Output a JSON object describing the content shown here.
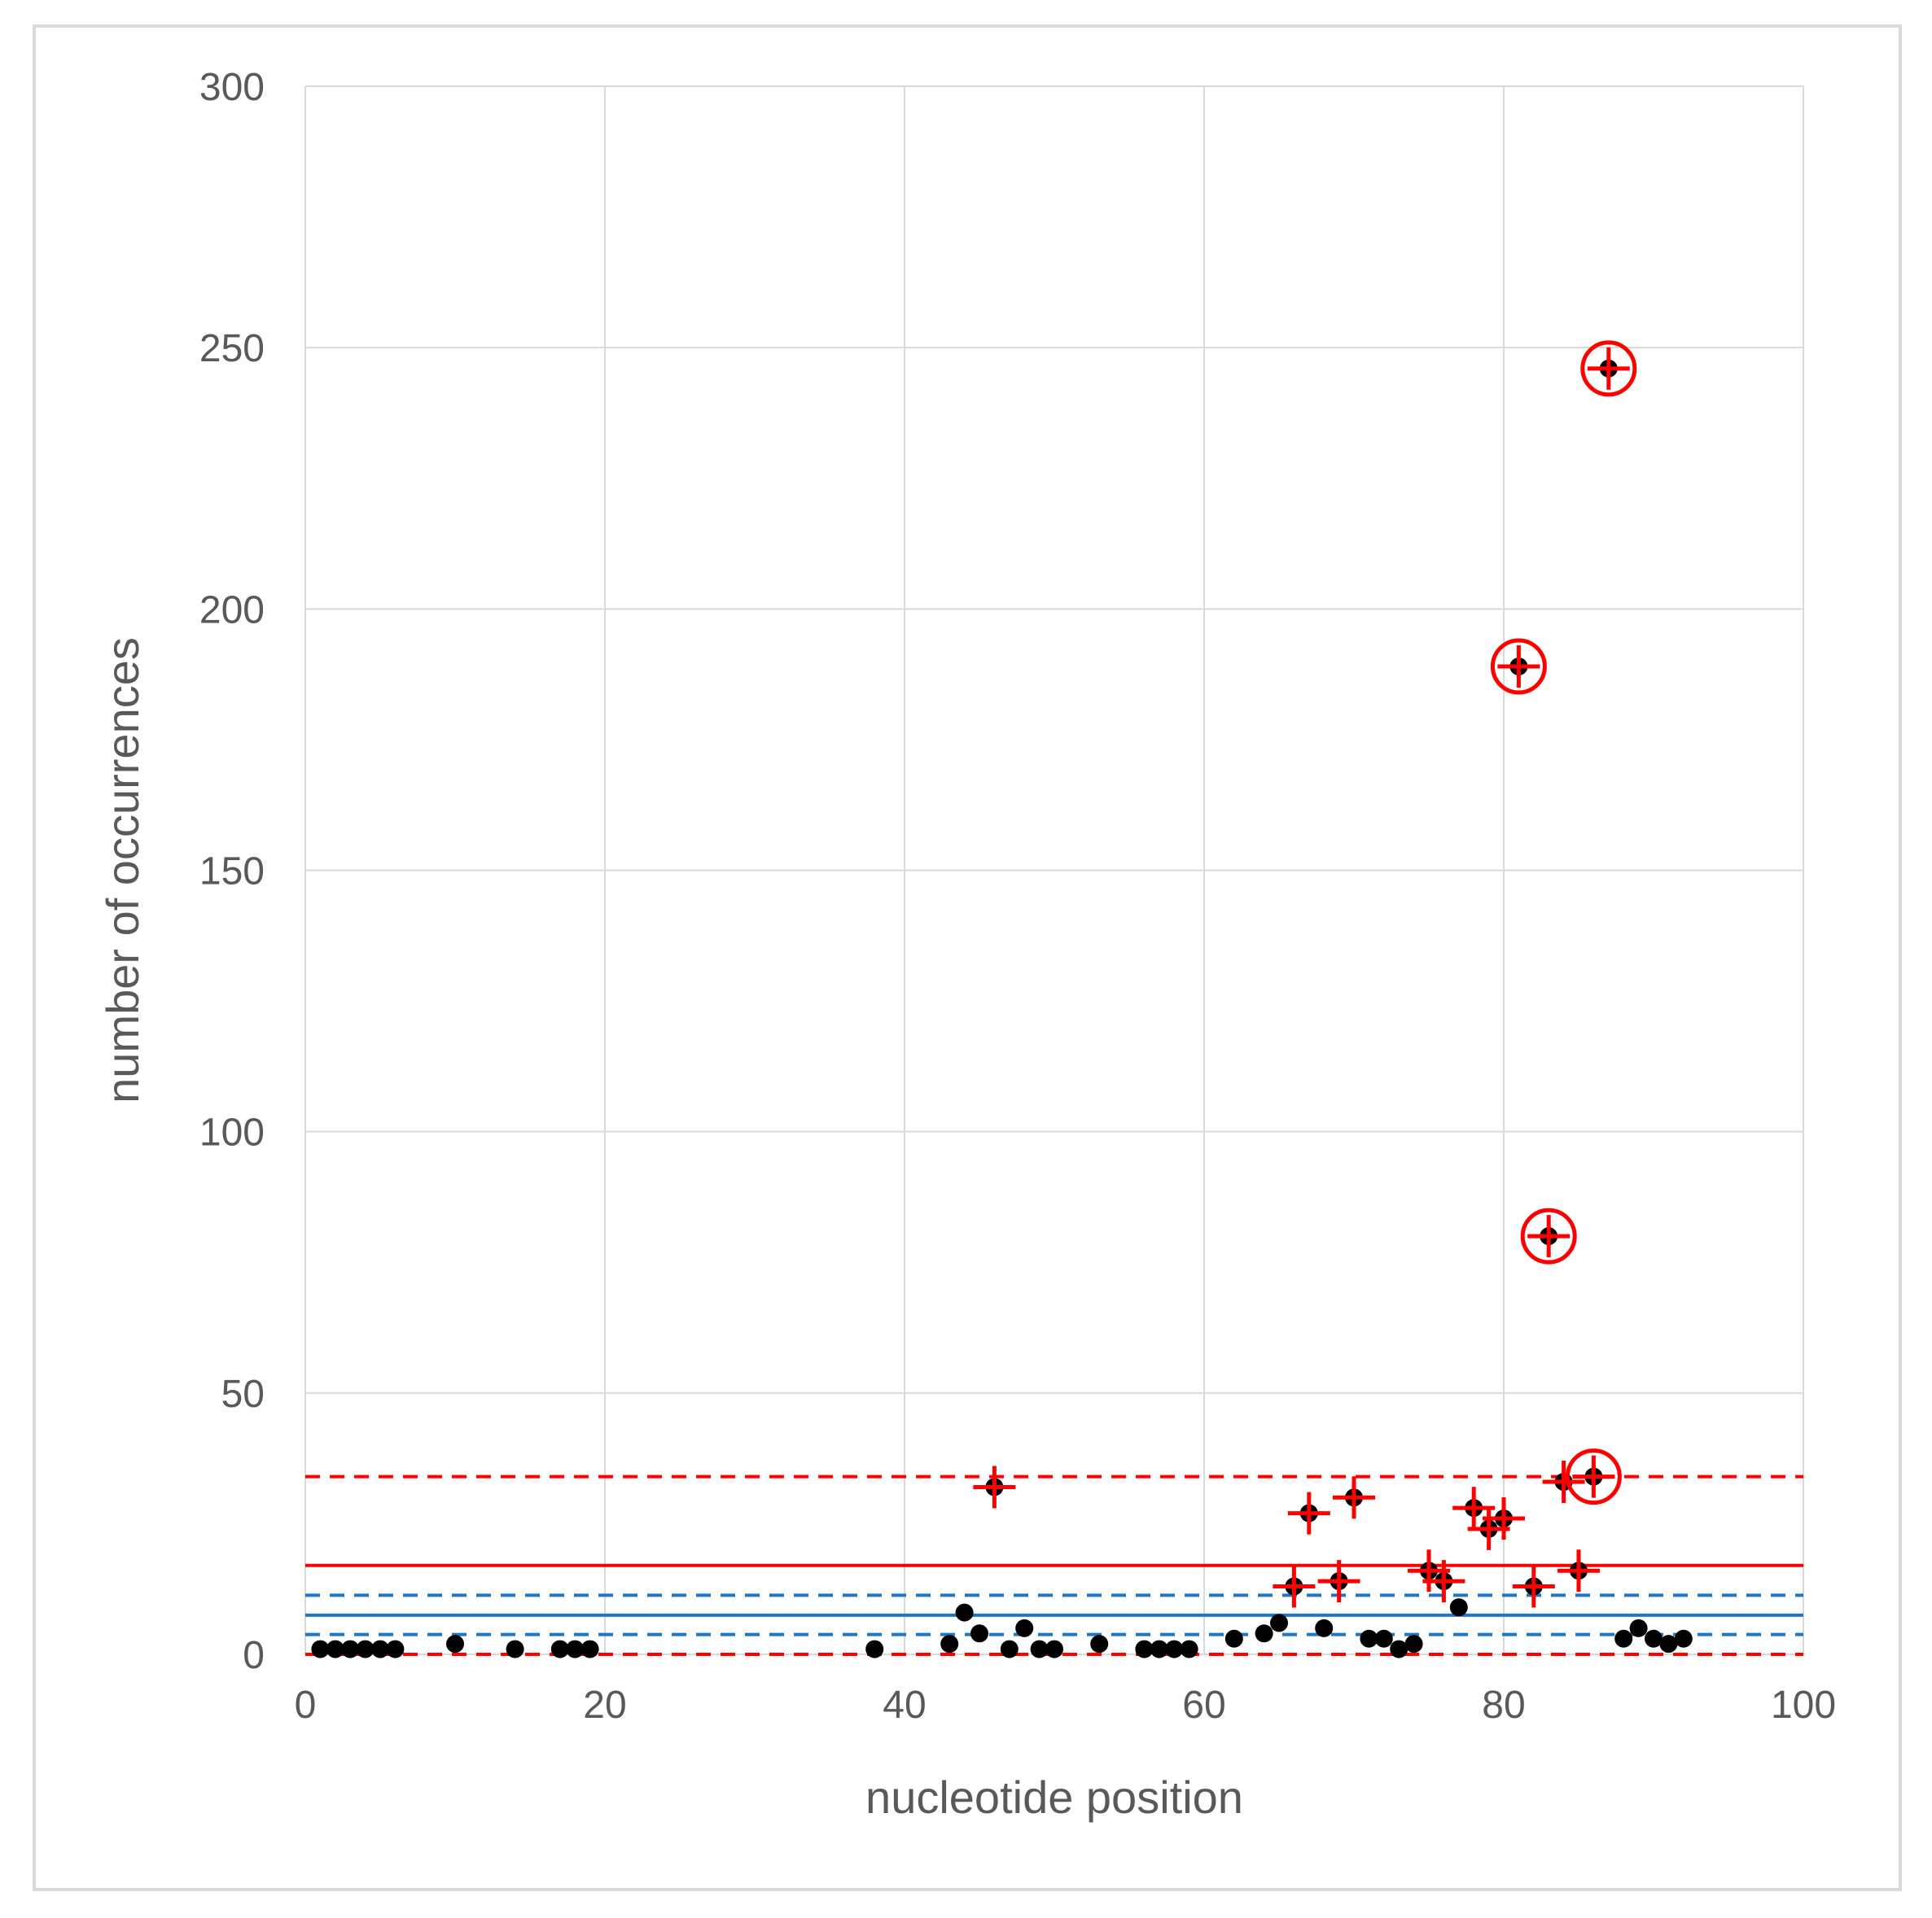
{
  "chart_data": {
    "type": "scatter",
    "title": "",
    "xlabel": "nucleotide position",
    "ylabel": "number of occurrences",
    "xlim": [
      0,
      100
    ],
    "ylim": [
      0,
      300
    ],
    "xticks": [
      0,
      20,
      40,
      60,
      80,
      100
    ],
    "yticks": [
      0,
      50,
      100,
      150,
      200,
      250,
      300
    ],
    "grid": true,
    "legend": "none",
    "colors": {
      "points": "#000000",
      "flagged": "#ff0000",
      "blue_lines": "#1f77c4",
      "red_lines": "#ff0000",
      "grid": "#d9d9d9",
      "text": "#595959"
    },
    "points": [
      {
        "x": 1,
        "y": 1
      },
      {
        "x": 2,
        "y": 1
      },
      {
        "x": 3,
        "y": 1
      },
      {
        "x": 4,
        "y": 1
      },
      {
        "x": 5,
        "y": 1
      },
      {
        "x": 6,
        "y": 1
      },
      {
        "x": 10,
        "y": 2
      },
      {
        "x": 14,
        "y": 1
      },
      {
        "x": 17,
        "y": 1
      },
      {
        "x": 18,
        "y": 1
      },
      {
        "x": 19,
        "y": 1
      },
      {
        "x": 38,
        "y": 1
      },
      {
        "x": 43,
        "y": 2
      },
      {
        "x": 44,
        "y": 8
      },
      {
        "x": 45,
        "y": 4
      },
      {
        "x": 46,
        "y": 32
      },
      {
        "x": 47,
        "y": 1
      },
      {
        "x": 48,
        "y": 5
      },
      {
        "x": 49,
        "y": 1
      },
      {
        "x": 50,
        "y": 1
      },
      {
        "x": 53,
        "y": 2
      },
      {
        "x": 56,
        "y": 1
      },
      {
        "x": 57,
        "y": 1
      },
      {
        "x": 58,
        "y": 1
      },
      {
        "x": 59,
        "y": 1
      },
      {
        "x": 62,
        "y": 3
      },
      {
        "x": 64,
        "y": 4
      },
      {
        "x": 65,
        "y": 6
      },
      {
        "x": 66,
        "y": 13
      },
      {
        "x": 67,
        "y": 27
      },
      {
        "x": 68,
        "y": 5
      },
      {
        "x": 69,
        "y": 14
      },
      {
        "x": 70,
        "y": 30
      },
      {
        "x": 71,
        "y": 3
      },
      {
        "x": 72,
        "y": 3
      },
      {
        "x": 73,
        "y": 1
      },
      {
        "x": 74,
        "y": 2
      },
      {
        "x": 75,
        "y": 16
      },
      {
        "x": 76,
        "y": 14
      },
      {
        "x": 77,
        "y": 9
      },
      {
        "x": 78,
        "y": 28
      },
      {
        "x": 79,
        "y": 24
      },
      {
        "x": 80,
        "y": 26
      },
      {
        "x": 81,
        "y": 189
      },
      {
        "x": 82,
        "y": 13
      },
      {
        "x": 83,
        "y": 80
      },
      {
        "x": 84,
        "y": 33
      },
      {
        "x": 85,
        "y": 16
      },
      {
        "x": 86,
        "y": 34
      },
      {
        "x": 87,
        "y": 246
      },
      {
        "x": 88,
        "y": 3
      },
      {
        "x": 89,
        "y": 5
      },
      {
        "x": 90,
        "y": 3
      },
      {
        "x": 91,
        "y": 2
      },
      {
        "x": 92,
        "y": 3
      }
    ],
    "flagged_x": [
      46,
      66,
      67,
      69,
      70,
      75,
      76,
      78,
      79,
      80,
      81,
      82,
      83,
      84,
      85,
      86,
      87
    ],
    "circled_x": [
      81,
      83,
      86,
      87
    ],
    "horizontal_lines": [
      {
        "y": 7.5,
        "color": "#1f77c4",
        "style": "solid"
      },
      {
        "y": 3.8,
        "color": "#1f77c4",
        "style": "dashed"
      },
      {
        "y": 11.3,
        "color": "#1f77c4",
        "style": "dashed"
      },
      {
        "y": 17,
        "color": "#ff0000",
        "style": "solid"
      },
      {
        "y": 0,
        "color": "#ff0000",
        "style": "dashed"
      },
      {
        "y": 34,
        "color": "#ff0000",
        "style": "dashed"
      }
    ]
  }
}
